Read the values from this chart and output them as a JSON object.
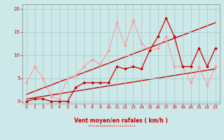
{
  "xlabel": "Vent moyen/en rafales ( km/h )",
  "bg_color": "#cce8e8",
  "grid_color": "#aacece",
  "text_color": "#cc0000",
  "xlim": [
    -0.5,
    23.5
  ],
  "ylim": [
    -0.5,
    21
  ],
  "yticks": [
    0,
    5,
    10,
    15,
    20
  ],
  "xticks": [
    0,
    1,
    2,
    3,
    4,
    5,
    6,
    7,
    8,
    9,
    10,
    11,
    12,
    13,
    14,
    15,
    16,
    17,
    18,
    19,
    20,
    21,
    22,
    23
  ],
  "x_wind": [
    0,
    1,
    2,
    3,
    4,
    5,
    6,
    7,
    8,
    9,
    10,
    11,
    12,
    13,
    14,
    15,
    16,
    17,
    18,
    19,
    20,
    21,
    22,
    23
  ],
  "y_avg": [
    0,
    0.5,
    0.5,
    0,
    0,
    0,
    3,
    4,
    4,
    4,
    4,
    7.5,
    7,
    7.5,
    7,
    11,
    14,
    18,
    14,
    7.5,
    7.5,
    11.5,
    7.5,
    11.5
  ],
  "y_gust": [
    4,
    7.5,
    5,
    1,
    0.5,
    5,
    5.5,
    7.5,
    9,
    8,
    11,
    17,
    12,
    17.5,
    12.5,
    11,
    11.5,
    14,
    7.5,
    7.5,
    4,
    7.5,
    3.5,
    7.5
  ],
  "trend1_x": [
    0,
    23
  ],
  "trend1_y": [
    0.5,
    7
  ],
  "trend2_x": [
    0,
    23
  ],
  "trend2_y": [
    1.5,
    17
  ],
  "avg_color": "#cc0000",
  "gust_color": "#ff9999",
  "trend_color": "#cc0000",
  "arrow_text": "↓↑↓↓↗↗↗↗↗↗↗↗↗↓↓↓↓↓↓↓↓↓↓↓"
}
